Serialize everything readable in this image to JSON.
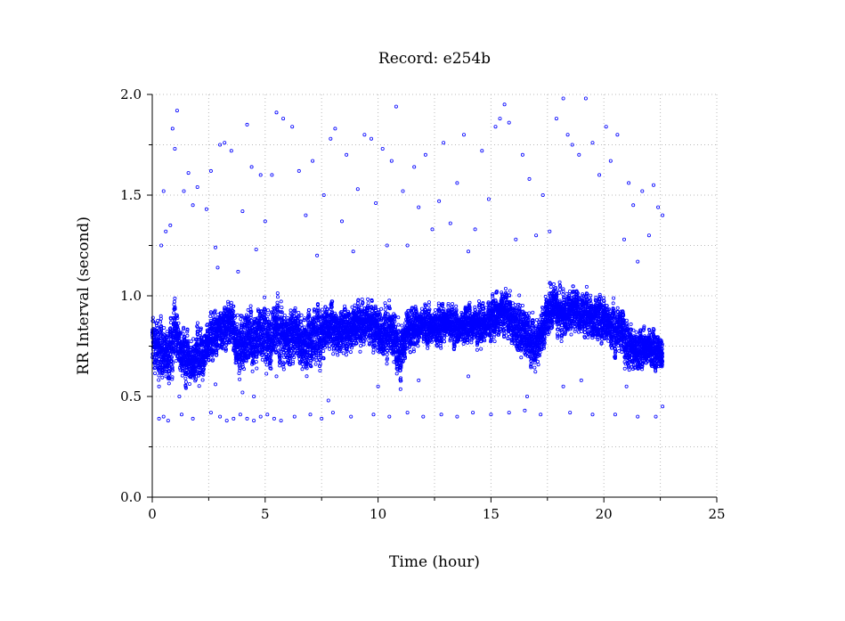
{
  "chart_data": {
    "type": "scatter",
    "title": "Record:  e254b",
    "xlabel": "Time (hour)",
    "ylabel": "RR Interval (second)",
    "xlim": [
      0,
      25
    ],
    "ylim": [
      0,
      2.0
    ],
    "x_ticks": [
      0,
      5,
      10,
      15,
      20,
      25
    ],
    "x_tick_labels": [
      "0",
      "5",
      "10",
      "15",
      "20",
      "25"
    ],
    "y_ticks": [
      0.0,
      0.5,
      1.0,
      1.5,
      2.0
    ],
    "y_tick_labels": [
      "0.0",
      "0.5",
      "1.0",
      "1.5",
      "2.0"
    ],
    "x_minor_ticks": [
      2.5,
      7.5,
      12.5,
      17.5,
      22.5
    ],
    "y_minor_ticks": [
      0.25,
      0.75,
      1.25,
      1.75
    ],
    "grid": true,
    "marker": "open-circle",
    "color": "#0000ff",
    "series": [
      {
        "main_band": {
          "x": [
            0.0,
            0.25,
            0.5,
            0.75,
            1.0,
            1.25,
            1.5,
            1.75,
            2.0,
            2.25,
            2.5,
            2.75,
            3.0,
            3.25,
            3.5,
            3.75,
            4.0,
            4.25,
            4.5,
            4.75,
            5.0,
            5.25,
            5.5,
            5.75,
            6.0,
            6.25,
            6.5,
            6.75,
            7.0,
            7.25,
            7.5,
            7.75,
            8.0,
            8.25,
            8.5,
            8.75,
            9.0,
            9.25,
            9.5,
            9.75,
            10.0,
            10.25,
            10.5,
            10.75,
            11.0,
            11.25,
            11.5,
            11.75,
            12.0,
            12.25,
            12.5,
            12.75,
            13.0,
            13.25,
            13.5,
            13.75,
            14.0,
            14.25,
            14.5,
            14.75,
            15.0,
            15.25,
            15.5,
            15.75,
            16.0,
            16.25,
            16.5,
            16.75,
            17.0,
            17.25,
            17.5,
            17.75,
            18.0,
            18.25,
            18.5,
            18.75,
            19.0,
            19.25,
            19.5,
            19.75,
            20.0,
            20.25,
            20.5,
            20.75,
            21.0,
            21.25,
            21.5,
            21.75,
            22.0,
            22.25,
            22.5,
            22.6
          ],
          "y": [
            0.78,
            0.74,
            0.72,
            0.68,
            0.85,
            0.72,
            0.7,
            0.65,
            0.72,
            0.7,
            0.78,
            0.8,
            0.82,
            0.85,
            0.88,
            0.76,
            0.75,
            0.8,
            0.78,
            0.82,
            0.8,
            0.78,
            0.85,
            0.8,
            0.78,
            0.82,
            0.8,
            0.75,
            0.78,
            0.82,
            0.8,
            0.85,
            0.86,
            0.8,
            0.84,
            0.82,
            0.86,
            0.85,
            0.88,
            0.85,
            0.84,
            0.8,
            0.84,
            0.78,
            0.7,
            0.82,
            0.84,
            0.85,
            0.86,
            0.85,
            0.84,
            0.86,
            0.87,
            0.86,
            0.84,
            0.85,
            0.86,
            0.86,
            0.85,
            0.86,
            0.88,
            0.9,
            0.92,
            0.91,
            0.86,
            0.84,
            0.82,
            0.78,
            0.76,
            0.82,
            0.9,
            0.96,
            0.92,
            0.9,
            0.92,
            0.94,
            0.9,
            0.92,
            0.88,
            0.9,
            0.88,
            0.86,
            0.82,
            0.84,
            0.76,
            0.74,
            0.72,
            0.74,
            0.75,
            0.72,
            0.73,
            0.72
          ],
          "spread": [
            0.14,
            0.14,
            0.14,
            0.15,
            0.14,
            0.12,
            0.12,
            0.12,
            0.12,
            0.1,
            0.1,
            0.1,
            0.1,
            0.1,
            0.12,
            0.14,
            0.14,
            0.16,
            0.14,
            0.14,
            0.14,
            0.16,
            0.14,
            0.14,
            0.14,
            0.14,
            0.14,
            0.14,
            0.14,
            0.14,
            0.14,
            0.12,
            0.1,
            0.12,
            0.1,
            0.1,
            0.1,
            0.1,
            0.1,
            0.1,
            0.12,
            0.12,
            0.12,
            0.14,
            0.12,
            0.1,
            0.08,
            0.08,
            0.08,
            0.08,
            0.08,
            0.08,
            0.08,
            0.08,
            0.08,
            0.08,
            0.08,
            0.08,
            0.08,
            0.08,
            0.1,
            0.1,
            0.1,
            0.1,
            0.12,
            0.12,
            0.12,
            0.12,
            0.12,
            0.12,
            0.12,
            0.12,
            0.1,
            0.1,
            0.1,
            0.1,
            0.1,
            0.1,
            0.1,
            0.1,
            0.1,
            0.1,
            0.12,
            0.12,
            0.12,
            0.1,
            0.08,
            0.08,
            0.08,
            0.08,
            0.08,
            0.08
          ],
          "points_per_hour": 420,
          "x_end": 22.6
        },
        "outliers": [
          {
            "x": 0.3,
            "y": 0.39
          },
          {
            "x": 0.5,
            "y": 0.4
          },
          {
            "x": 0.7,
            "y": 0.38
          },
          {
            "x": 1.3,
            "y": 0.41
          },
          {
            "x": 1.8,
            "y": 0.39
          },
          {
            "x": 2.6,
            "y": 0.42
          },
          {
            "x": 3.0,
            "y": 0.4
          },
          {
            "x": 3.3,
            "y": 0.38
          },
          {
            "x": 3.6,
            "y": 0.39
          },
          {
            "x": 3.9,
            "y": 0.41
          },
          {
            "x": 4.2,
            "y": 0.39
          },
          {
            "x": 4.5,
            "y": 0.38
          },
          {
            "x": 4.8,
            "y": 0.4
          },
          {
            "x": 5.1,
            "y": 0.41
          },
          {
            "x": 5.4,
            "y": 0.39
          },
          {
            "x": 5.7,
            "y": 0.38
          },
          {
            "x": 6.3,
            "y": 0.4
          },
          {
            "x": 7.0,
            "y": 0.41
          },
          {
            "x": 7.5,
            "y": 0.39
          },
          {
            "x": 8.0,
            "y": 0.42
          },
          {
            "x": 8.8,
            "y": 0.4
          },
          {
            "x": 9.8,
            "y": 0.41
          },
          {
            "x": 10.5,
            "y": 0.4
          },
          {
            "x": 11.3,
            "y": 0.42
          },
          {
            "x": 12.0,
            "y": 0.4
          },
          {
            "x": 12.8,
            "y": 0.41
          },
          {
            "x": 13.5,
            "y": 0.4
          },
          {
            "x": 14.2,
            "y": 0.42
          },
          {
            "x": 15.0,
            "y": 0.41
          },
          {
            "x": 15.8,
            "y": 0.42
          },
          {
            "x": 16.5,
            "y": 0.43
          },
          {
            "x": 17.2,
            "y": 0.41
          },
          {
            "x": 18.5,
            "y": 0.42
          },
          {
            "x": 19.5,
            "y": 0.41
          },
          {
            "x": 20.5,
            "y": 0.41
          },
          {
            "x": 21.5,
            "y": 0.4
          },
          {
            "x": 22.3,
            "y": 0.4
          },
          {
            "x": 22.6,
            "y": 0.45
          },
          {
            "x": 0.3,
            "y": 0.55
          },
          {
            "x": 1.2,
            "y": 0.5
          },
          {
            "x": 2.8,
            "y": 0.56
          },
          {
            "x": 4.0,
            "y": 0.52
          },
          {
            "x": 4.5,
            "y": 0.5
          },
          {
            "x": 5.5,
            "y": 0.6
          },
          {
            "x": 7.8,
            "y": 0.48
          },
          {
            "x": 10.0,
            "y": 0.55
          },
          {
            "x": 11.8,
            "y": 0.58
          },
          {
            "x": 14.0,
            "y": 0.6
          },
          {
            "x": 16.6,
            "y": 0.5
          },
          {
            "x": 18.2,
            "y": 0.55
          },
          {
            "x": 19.0,
            "y": 0.58
          },
          {
            "x": 21.0,
            "y": 0.55
          },
          {
            "x": 0.4,
            "y": 1.25
          },
          {
            "x": 0.5,
            "y": 1.52
          },
          {
            "x": 0.6,
            "y": 1.32
          },
          {
            "x": 0.8,
            "y": 1.35
          },
          {
            "x": 0.9,
            "y": 1.83
          },
          {
            "x": 1.0,
            "y": 1.73
          },
          {
            "x": 1.1,
            "y": 1.92
          },
          {
            "x": 1.4,
            "y": 1.52
          },
          {
            "x": 1.6,
            "y": 1.61
          },
          {
            "x": 1.8,
            "y": 1.45
          },
          {
            "x": 2.0,
            "y": 1.54
          },
          {
            "x": 2.4,
            "y": 1.43
          },
          {
            "x": 2.6,
            "y": 1.62
          },
          {
            "x": 2.8,
            "y": 1.24
          },
          {
            "x": 2.9,
            "y": 1.14
          },
          {
            "x": 3.0,
            "y": 1.75
          },
          {
            "x": 3.2,
            "y": 1.76
          },
          {
            "x": 3.5,
            "y": 1.72
          },
          {
            "x": 3.8,
            "y": 1.12
          },
          {
            "x": 4.0,
            "y": 1.42
          },
          {
            "x": 4.2,
            "y": 1.85
          },
          {
            "x": 4.4,
            "y": 1.64
          },
          {
            "x": 4.6,
            "y": 1.23
          },
          {
            "x": 4.8,
            "y": 1.6
          },
          {
            "x": 5.0,
            "y": 1.37
          },
          {
            "x": 5.3,
            "y": 1.6
          },
          {
            "x": 5.5,
            "y": 1.91
          },
          {
            "x": 5.8,
            "y": 1.88
          },
          {
            "x": 6.2,
            "y": 1.84
          },
          {
            "x": 6.5,
            "y": 1.62
          },
          {
            "x": 6.8,
            "y": 1.4
          },
          {
            "x": 7.1,
            "y": 1.67
          },
          {
            "x": 7.3,
            "y": 1.2
          },
          {
            "x": 7.6,
            "y": 1.5
          },
          {
            "x": 7.9,
            "y": 1.78
          },
          {
            "x": 8.1,
            "y": 1.83
          },
          {
            "x": 8.4,
            "y": 1.37
          },
          {
            "x": 8.6,
            "y": 1.7
          },
          {
            "x": 8.9,
            "y": 1.22
          },
          {
            "x": 9.1,
            "y": 1.53
          },
          {
            "x": 9.4,
            "y": 1.8
          },
          {
            "x": 9.7,
            "y": 1.78
          },
          {
            "x": 9.9,
            "y": 1.46
          },
          {
            "x": 10.2,
            "y": 1.73
          },
          {
            "x": 10.4,
            "y": 1.25
          },
          {
            "x": 10.6,
            "y": 1.67
          },
          {
            "x": 10.8,
            "y": 1.94
          },
          {
            "x": 11.1,
            "y": 1.52
          },
          {
            "x": 11.3,
            "y": 1.25
          },
          {
            "x": 11.6,
            "y": 1.64
          },
          {
            "x": 11.8,
            "y": 1.44
          },
          {
            "x": 12.1,
            "y": 1.7
          },
          {
            "x": 12.4,
            "y": 1.33
          },
          {
            "x": 12.7,
            "y": 1.47
          },
          {
            "x": 12.9,
            "y": 1.76
          },
          {
            "x": 13.2,
            "y": 1.36
          },
          {
            "x": 13.5,
            "y": 1.56
          },
          {
            "x": 13.8,
            "y": 1.8
          },
          {
            "x": 14.0,
            "y": 1.22
          },
          {
            "x": 14.3,
            "y": 1.33
          },
          {
            "x": 14.6,
            "y": 1.72
          },
          {
            "x": 14.9,
            "y": 1.48
          },
          {
            "x": 15.2,
            "y": 1.84
          },
          {
            "x": 15.4,
            "y": 1.88
          },
          {
            "x": 15.6,
            "y": 1.95
          },
          {
            "x": 15.8,
            "y": 1.86
          },
          {
            "x": 16.1,
            "y": 1.28
          },
          {
            "x": 16.4,
            "y": 1.7
          },
          {
            "x": 16.7,
            "y": 1.58
          },
          {
            "x": 17.0,
            "y": 1.3
          },
          {
            "x": 17.3,
            "y": 1.5
          },
          {
            "x": 17.6,
            "y": 1.32
          },
          {
            "x": 17.9,
            "y": 1.88
          },
          {
            "x": 18.2,
            "y": 1.98
          },
          {
            "x": 18.4,
            "y": 1.8
          },
          {
            "x": 18.6,
            "y": 1.75
          },
          {
            "x": 18.9,
            "y": 1.7
          },
          {
            "x": 19.2,
            "y": 1.98
          },
          {
            "x": 19.5,
            "y": 1.76
          },
          {
            "x": 19.8,
            "y": 1.6
          },
          {
            "x": 20.1,
            "y": 1.84
          },
          {
            "x": 20.3,
            "y": 1.67
          },
          {
            "x": 20.6,
            "y": 1.8
          },
          {
            "x": 20.9,
            "y": 1.28
          },
          {
            "x": 21.1,
            "y": 1.56
          },
          {
            "x": 21.3,
            "y": 1.45
          },
          {
            "x": 21.5,
            "y": 1.17
          },
          {
            "x": 21.7,
            "y": 1.52
          },
          {
            "x": 22.0,
            "y": 1.3
          },
          {
            "x": 22.2,
            "y": 1.55
          },
          {
            "x": 22.4,
            "y": 1.44
          },
          {
            "x": 22.6,
            "y": 1.4
          }
        ]
      }
    ]
  }
}
